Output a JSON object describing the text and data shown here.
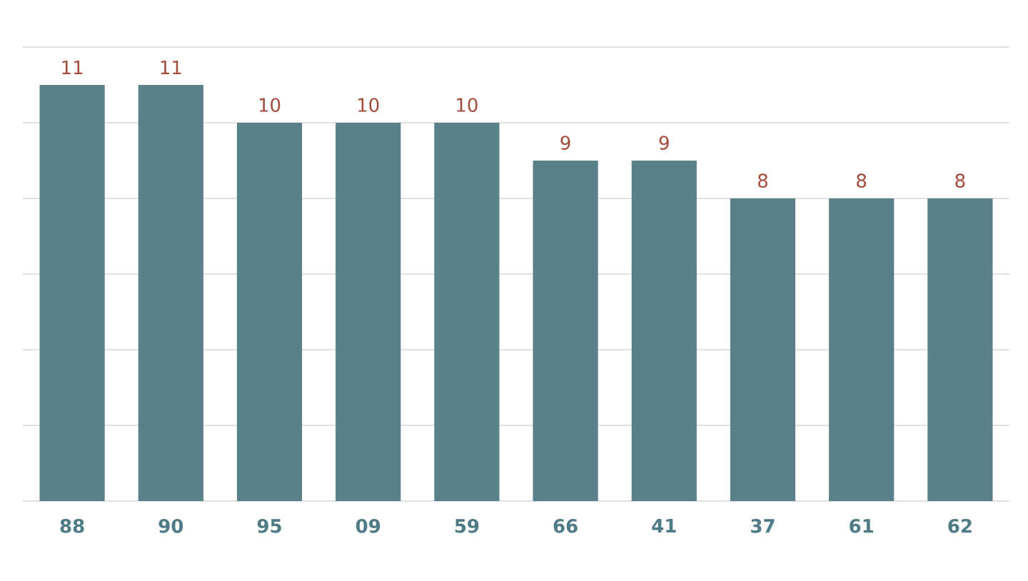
{
  "chart_data": {
    "type": "bar",
    "categories": [
      "88",
      "90",
      "95",
      "09",
      "59",
      "66",
      "41",
      "37",
      "61",
      "62"
    ],
    "values": [
      11,
      11,
      10,
      10,
      10,
      9,
      9,
      8,
      8,
      8
    ],
    "color": "#5a808a",
    "ylim": [
      0,
      12
    ],
    "yticks": [
      {
        "value": 0,
        "label": null
      },
      {
        "value": 2,
        "label": null
      },
      {
        "value": 4,
        "label": null
      },
      {
        "value": 6,
        "label": null
      },
      {
        "value": 8,
        "label": null
      },
      {
        "value": 10,
        "label": null
      },
      {
        "value": 12,
        "label": null
      }
    ],
    "grid": "y",
    "data_labels": true,
    "tick_labels": "x"
  }
}
